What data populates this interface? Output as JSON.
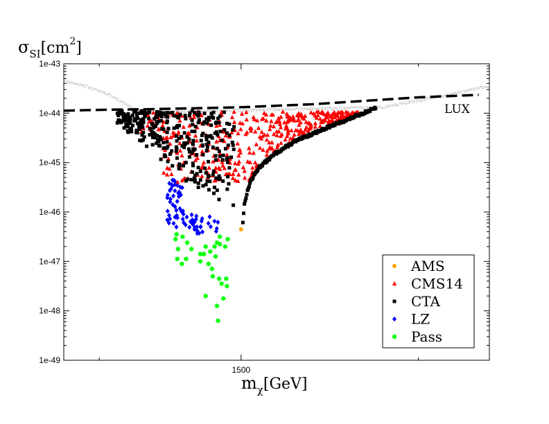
{
  "chart_data": {
    "type": "scatter",
    "title": "",
    "ylabel": "σ_SI[cm²]",
    "ylabel_parts": {
      "main": "σ",
      "sub": "SI",
      "unit_open": "[cm",
      "sup": "2",
      "unit_close": "]"
    },
    "xlabel": "m_χ[GeV]",
    "xlabel_parts": {
      "main": "m",
      "sub": "χ",
      "unit": "[GeV]"
    },
    "xlim": [
      1000,
      2200
    ],
    "ylim_log10": [
      -49,
      -43
    ],
    "x_ticks": [
      {
        "value": 1500,
        "label": "1500"
      }
    ],
    "x_minor_ticks": [
      1100,
      2000
    ],
    "y_ticks": [
      {
        "exp": -43,
        "label": "1e-43"
      },
      {
        "exp": -44,
        "label": "1e-44"
      },
      {
        "exp": -45,
        "label": "1e-45"
      },
      {
        "exp": -46,
        "label": "1e-46"
      },
      {
        "exp": -47,
        "label": "1e-47"
      },
      {
        "exp": -48,
        "label": "1e-48"
      },
      {
        "exp": -49,
        "label": "1e-49"
      }
    ],
    "limit_line": {
      "name": "LUX",
      "label": "LUX",
      "style": "dashed",
      "color": "#000000",
      "points": [
        [
          1000,
          -43.95
        ],
        [
          1120,
          -43.93
        ],
        [
          1240,
          -43.92
        ],
        [
          1500,
          -43.88
        ],
        [
          1700,
          -43.82
        ],
        [
          1850,
          -43.75
        ],
        [
          2000,
          -43.68
        ],
        [
          2170,
          -43.63
        ]
      ]
    },
    "background_curve": {
      "name": "grey band",
      "color": "#bfbfbf",
      "points": [
        [
          1000,
          -43.35
        ],
        [
          1060,
          -43.45
        ],
        [
          1120,
          -43.6
        ],
        [
          1160,
          -43.75
        ],
        [
          1200,
          -43.92
        ],
        [
          1240,
          -43.98
        ],
        [
          1900,
          -43.88
        ],
        [
          2000,
          -43.75
        ],
        [
          2100,
          -43.6
        ],
        [
          2200,
          -43.45
        ]
      ]
    },
    "legend": {
      "position": "bottom-right",
      "entries": [
        {
          "label": "AMS",
          "color": "#ffa500",
          "marker": "circle"
        },
        {
          "label": "CMS14",
          "color": "#ff0000",
          "marker": "triangle"
        },
        {
          "label": "CTA",
          "color": "#000000",
          "marker": "square"
        },
        {
          "label": "LZ",
          "color": "#0000ff",
          "marker": "diamond"
        },
        {
          "label": "Pass",
          "color": "#00ff00",
          "marker": "star"
        }
      ]
    },
    "series": [
      {
        "name": "AMS",
        "marker": "circle",
        "color": "#ffa500",
        "points": [
          [
            1500,
            -46.35
          ]
        ]
      },
      {
        "name": "CMS14",
        "marker": "triangle",
        "color": "#ff0000",
        "region": {
          "x_min": 1210,
          "x_max": 1830,
          "y_upper_log": -43.92,
          "y_lower_base": -45.4,
          "count": 420,
          "seed": 7
        }
      },
      {
        "name": "CTA",
        "marker": "square",
        "color": "#000000",
        "edge_curve": [
          [
            1505,
            -46.2
          ],
          [
            1510,
            -45.8
          ],
          [
            1525,
            -45.4
          ],
          [
            1550,
            -45.1
          ],
          [
            1600,
            -44.8
          ],
          [
            1650,
            -44.58
          ],
          [
            1700,
            -44.42
          ],
          [
            1750,
            -44.27
          ],
          [
            1800,
            -44.13
          ],
          [
            1850,
            -43.98
          ],
          [
            1880,
            -43.9
          ]
        ],
        "region": {
          "x_min": 1150,
          "x_max": 1480,
          "y_upper_log": -43.95,
          "y_lower_log": -46.2,
          "count": 330,
          "seed": 13
        }
      },
      {
        "name": "LZ",
        "marker": "diamond",
        "color": "#0000ff",
        "region": {
          "x_min": 1285,
          "x_max": 1440,
          "y_upper_log": -45.35,
          "y_lower_log": -46.45,
          "count": 75,
          "seed": 21
        }
      },
      {
        "name": "Pass",
        "marker": "star",
        "color": "#00ff00",
        "points": [
          [
            1435,
            -48.2
          ],
          [
            1400,
            -47.7
          ],
          [
            1432,
            -47.9
          ],
          [
            1450,
            -47.75
          ],
          [
            1460,
            -47.5
          ],
          [
            1445,
            -47.45
          ],
          [
            1420,
            -47.3
          ],
          [
            1418,
            -47.15
          ],
          [
            1438,
            -47.35
          ],
          [
            1408,
            -47.05
          ],
          [
            1385,
            -47.0
          ],
          [
            1395,
            -46.85
          ],
          [
            1428,
            -46.9
          ],
          [
            1413,
            -46.8
          ],
          [
            1440,
            -46.65
          ],
          [
            1455,
            -46.7
          ],
          [
            1462,
            -46.55
          ],
          [
            1440,
            -46.5
          ],
          [
            1432,
            -46.62
          ],
          [
            1400,
            -46.7
          ],
          [
            1385,
            -46.85
          ],
          [
            1360,
            -46.75
          ],
          [
            1345,
            -46.95
          ],
          [
            1333,
            -47.05
          ],
          [
            1320,
            -46.95
          ],
          [
            1322,
            -46.75
          ],
          [
            1315,
            -46.55
          ],
          [
            1318,
            -46.45
          ],
          [
            1335,
            -46.5
          ],
          [
            1348,
            -46.62
          ],
          [
            1425,
            -46.7
          ],
          [
            1458,
            -47.35
          ]
        ]
      }
    ]
  }
}
